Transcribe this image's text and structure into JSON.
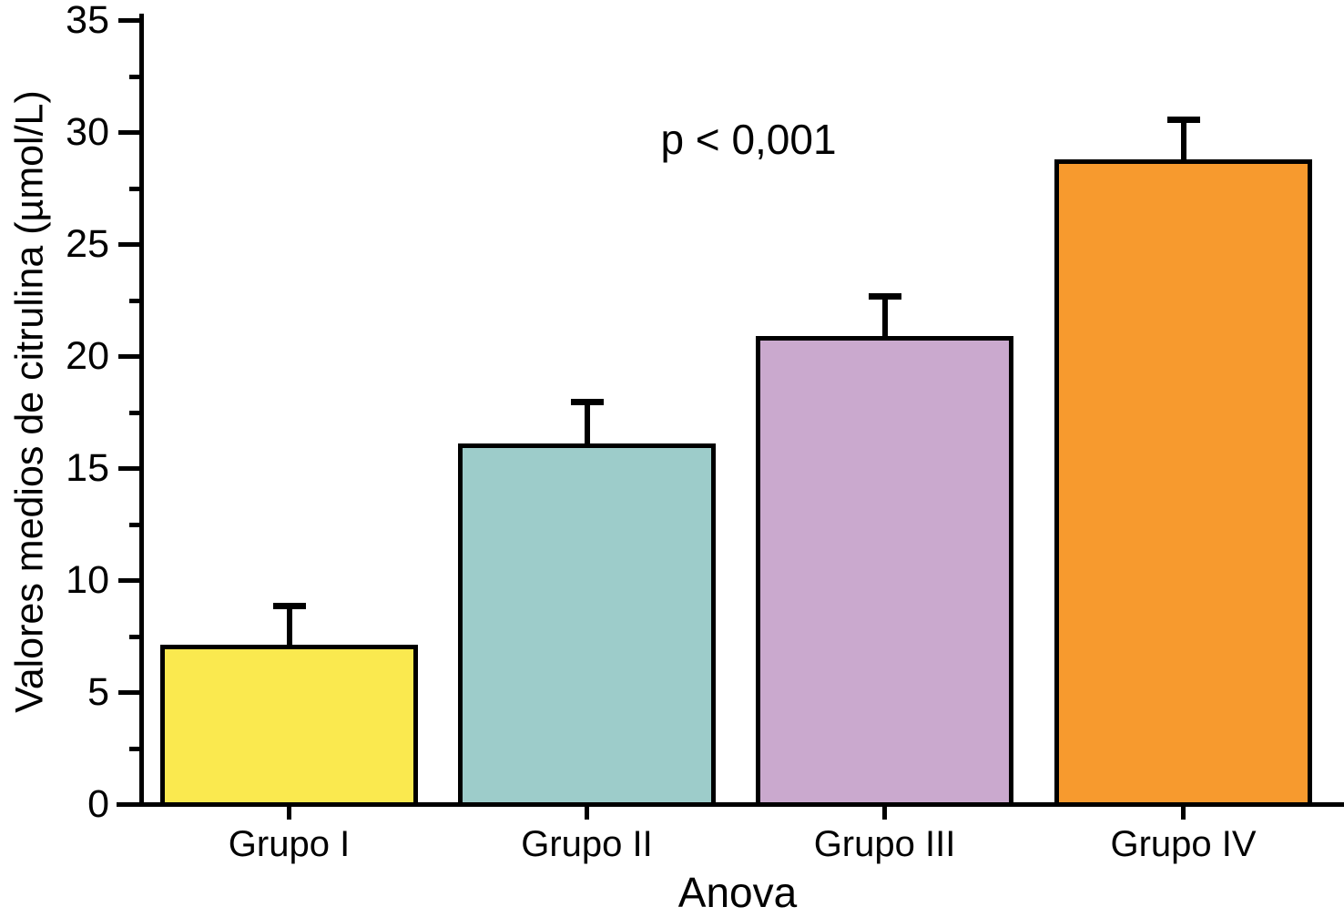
{
  "chart_data": {
    "type": "bar",
    "title": "",
    "annotation": "p < 0,001",
    "xlabel": "Anova",
    "ylabel": "Valores medios de citrulina (µmol/L)",
    "categories": [
      "Grupo I",
      "Grupo II",
      "Grupo III",
      "Grupo IV"
    ],
    "values": [
      7.1,
      16.1,
      20.9,
      28.8
    ],
    "errors_upper": [
      1.9,
      2.0,
      1.9,
      1.9
    ],
    "series": [
      {
        "name": "Valores medios de citrulina",
        "values": [
          7.1,
          16.1,
          20.9,
          28.8
        ]
      }
    ],
    "bar_colors": [
      "#FAE94F",
      "#9DCCCA",
      "#CAA9CE",
      "#F79A2E"
    ],
    "axis_color": "#000000",
    "background_color": "#FFFFFF",
    "ylim": [
      0,
      35
    ],
    "yticks_major": [
      0,
      5,
      10,
      15,
      20,
      25,
      30,
      35
    ],
    "yticks_minor": [
      2.5,
      7.5,
      12.5,
      17.5,
      22.5,
      27.5,
      32.5
    ],
    "grid": false,
    "legend": "none"
  }
}
